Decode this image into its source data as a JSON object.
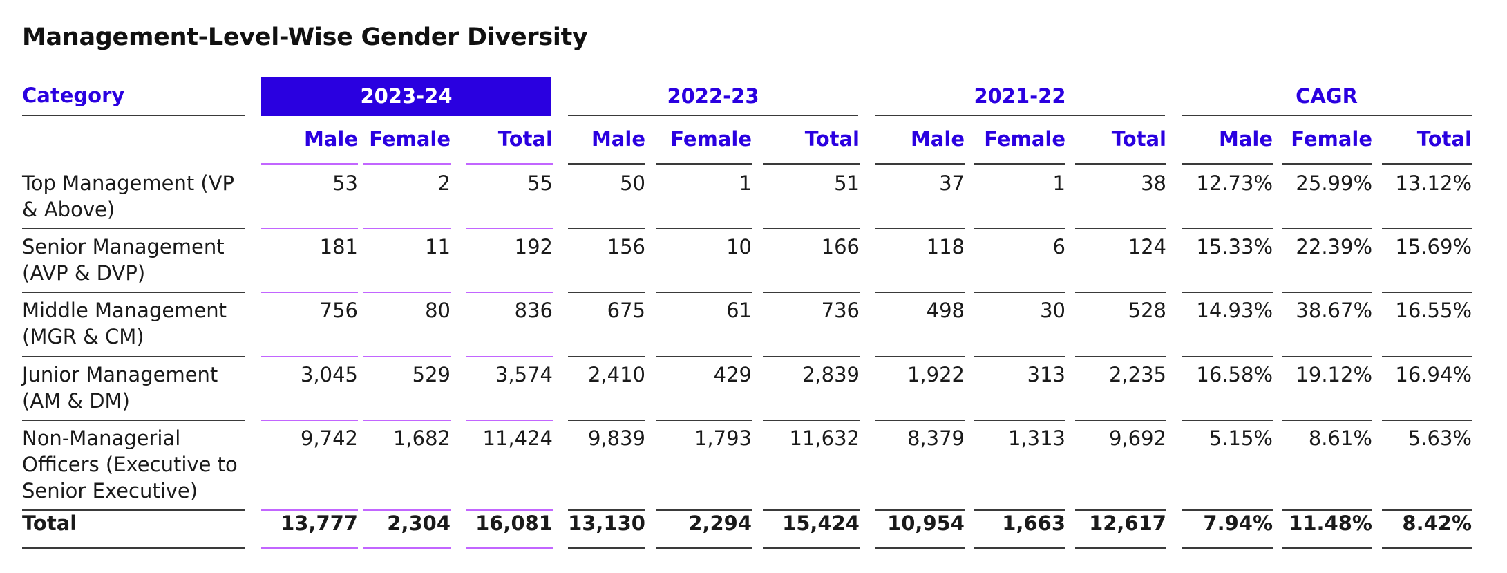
{
  "title": "Management-Level-Wise Gender Diversity",
  "accent_color": "#2a00e0",
  "header": {
    "category": "Category",
    "groups": [
      "2023-24",
      "2022-23",
      "2021-22",
      "CAGR"
    ],
    "subs": [
      "Male",
      "Female",
      "Total"
    ]
  },
  "rows": [
    {
      "category": "Top Management (VP & Above)",
      "values": [
        "53",
        "2",
        "55",
        "50",
        "1",
        "51",
        "37",
        "1",
        "38",
        "12.73%",
        "25.99%",
        "13.12%"
      ]
    },
    {
      "category": "Senior Management (AVP & DVP)",
      "values": [
        "181",
        "11",
        "192",
        "156",
        "10",
        "166",
        "118",
        "6",
        "124",
        "15.33%",
        "22.39%",
        "15.69%"
      ]
    },
    {
      "category": "Middle Management (MGR & CM)",
      "values": [
        "756",
        "80",
        "836",
        "675",
        "61",
        "736",
        "498",
        "30",
        "528",
        "14.93%",
        "38.67%",
        "16.55%"
      ]
    },
    {
      "category": "Junior Management (AM & DM)",
      "values": [
        "3,045",
        "529",
        "3,574",
        "2,410",
        "429",
        "2,839",
        "1,922",
        "313",
        "2,235",
        "16.58%",
        "19.12%",
        "16.94%"
      ]
    },
    {
      "category": "Non-Managerial Officers (Executive to Senior Executive)",
      "values": [
        "9,742",
        "1,682",
        "11,424",
        "9,839",
        "1,793",
        "11,632",
        "8,379",
        "1,313",
        "9,692",
        "5.15%",
        "8.61%",
        "5.63%"
      ]
    },
    {
      "category": "Total",
      "values": [
        "13,777",
        "2,304",
        "16,081",
        "13,130",
        "2,294",
        "15,424",
        "10,954",
        "1,663",
        "12,617",
        "7.94%",
        "11.48%",
        "8.42%"
      ]
    }
  ]
}
